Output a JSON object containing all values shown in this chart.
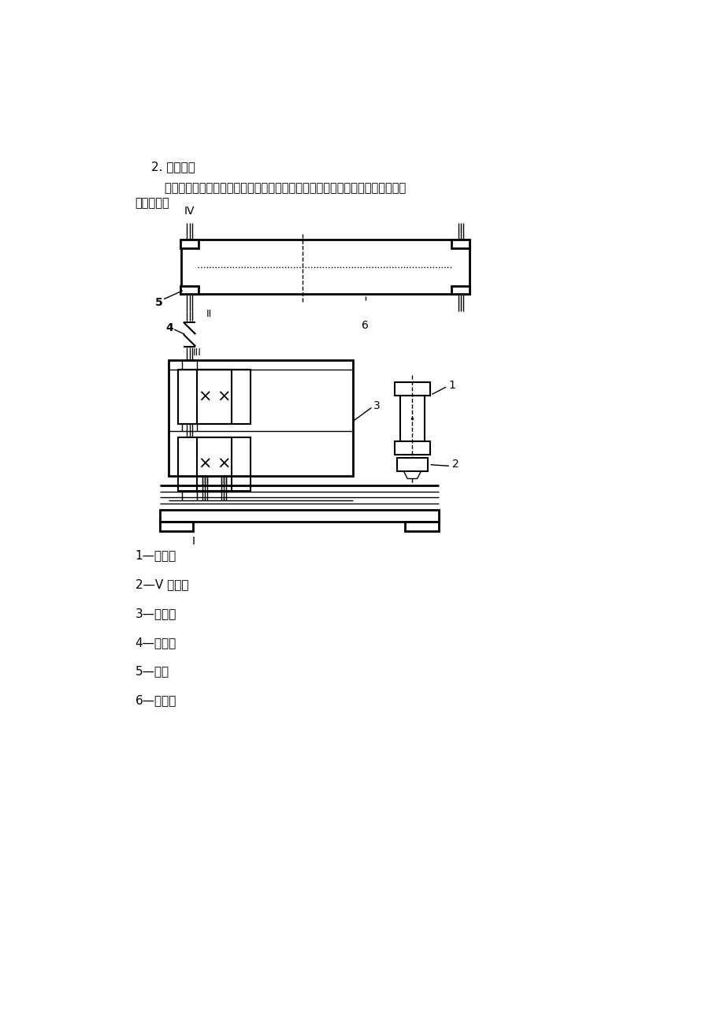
{
  "title": "2. 设计方案",
  "para_line1": "        据所给题目：设计一带式输送机的传动装置（两级同轴式圆柱斜齿轮减速器）方",
  "para_line2": "案图如下：",
  "legend_items": [
    "1—电动机",
    "2—V 带传动",
    "3—减速器",
    "4—联轴器",
    "5—鼓轮",
    "6—输送带"
  ],
  "bg_color": "#ffffff",
  "line_color": "#000000"
}
